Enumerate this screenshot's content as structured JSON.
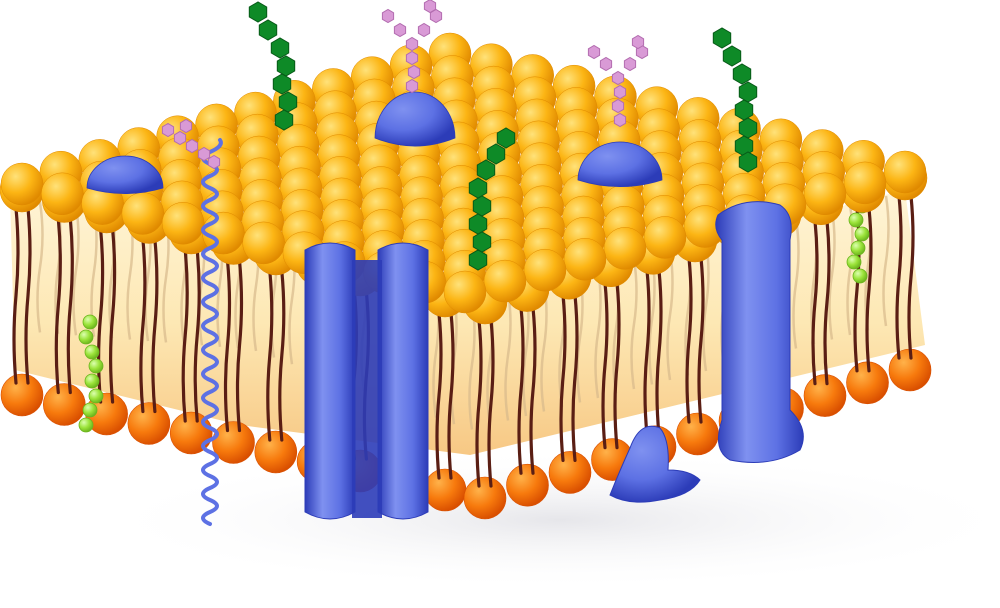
{
  "diagram": {
    "subject": "",
    "colors": {
      "background": "#ffffff",
      "head_top_light": "#ffe27a",
      "head_top": "#fcb514",
      "head_top_dark": "#e08a00",
      "head_bottom_light": "#ffb24a",
      "head_bottom": "#f77a0d",
      "head_bottom_dark": "#d94f00",
      "lipid_interior": "#fde8b4",
      "lipid_interior_edge": "#f7c884",
      "tail": "#5a1e14",
      "tail_faint": "#d7b98c",
      "protein_light": "#7f91f0",
      "protein": "#5d71e4",
      "protein_dark": "#2c3cb8",
      "sugar_green": "#0e8a27",
      "sugar_green_edge": "#075a18",
      "sugar_pink": "#d99ad6",
      "sugar_pink_edge": "#b36db0",
      "cholesterol": "#9be33a",
      "cholesterol_edge": "#6cb51e",
      "shadow": "#e6e6ea"
    },
    "components": [
      {
        "name": "phospholipid-bilayer",
        "icon": "phospholipid-icon"
      },
      {
        "name": "channel-protein",
        "icon": "channel-protein-icon"
      },
      {
        "name": "integral-protein",
        "icon": "integral-protein-icon"
      },
      {
        "name": "peripheral-protein",
        "icon": "peripheral-protein-icon"
      },
      {
        "name": "helical-transmembrane-protein",
        "icon": "helix-icon"
      },
      {
        "name": "glycolipid",
        "icon": "green-sugar-chain-icon"
      },
      {
        "name": "glycoprotein",
        "icon": "pink-branched-sugar-icon"
      },
      {
        "name": "cholesterol",
        "icon": "cholesterol-icon"
      }
    ]
  }
}
